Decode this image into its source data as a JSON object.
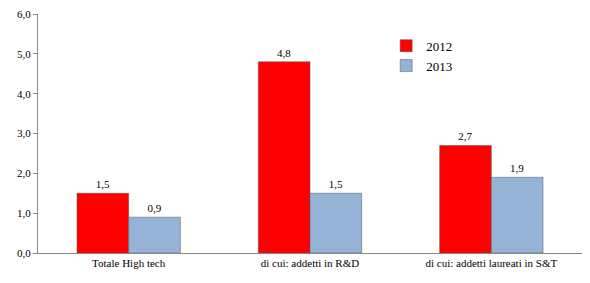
{
  "chart_data": {
    "type": "bar",
    "categories": [
      "Totale High tech",
      "di cui: addetti in R&D",
      "di cui: addetti laureati in S&T"
    ],
    "series": [
      {
        "name": "2012",
        "color": "#ff0000",
        "values": [
          1.5,
          4.8,
          2.7
        ],
        "value_labels": [
          "1,5",
          "4,8",
          "2,7"
        ]
      },
      {
        "name": "2013",
        "color": "#95b3d7",
        "values": [
          0.9,
          1.5,
          1.9
        ],
        "value_labels": [
          "0,9",
          "1,5",
          "1,9"
        ]
      }
    ],
    "ylim": [
      0,
      6
    ],
    "yticks": [
      {
        "value": 0,
        "label": "0,0"
      },
      {
        "value": 1,
        "label": "1,0"
      },
      {
        "value": 2,
        "label": "2,0"
      },
      {
        "value": 3,
        "label": "3,0"
      },
      {
        "value": 4,
        "label": "4,0"
      },
      {
        "value": 5,
        "label": "5,0"
      },
      {
        "value": 6,
        "label": "6,0"
      }
    ],
    "grid": false,
    "legend": "top",
    "data_labels": true
  }
}
